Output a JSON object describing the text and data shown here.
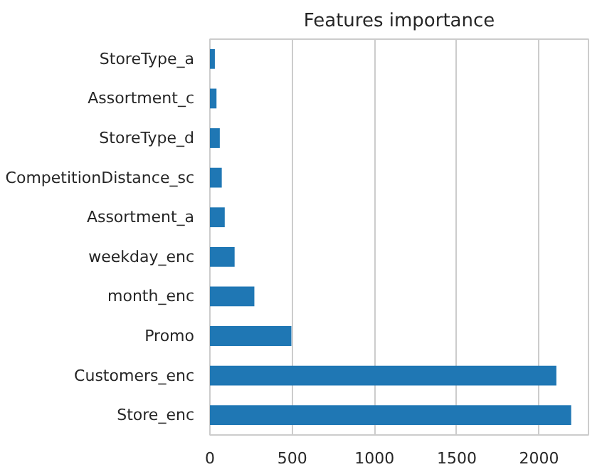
{
  "chart_data": {
    "type": "bar",
    "orientation": "horizontal",
    "title": "Features importance",
    "categories": [
      "StoreType_a",
      "Assortment_c",
      "StoreType_d",
      "CompetitionDistance_sc",
      "Assortment_a",
      "weekday_enc",
      "month_enc",
      "Promo",
      "Customers_enc",
      "Store_enc"
    ],
    "values": [
      30,
      40,
      60,
      72,
      90,
      150,
      270,
      495,
      2105,
      2195
    ],
    "color": "#1f77b4",
    "xlim": [
      0,
      2300
    ],
    "xticks": [
      0,
      500,
      1000,
      1500,
      2000
    ],
    "grid": "x"
  }
}
